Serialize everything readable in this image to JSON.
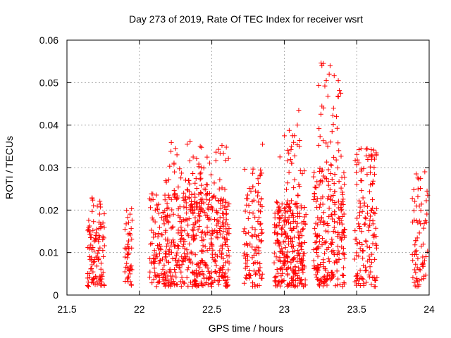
{
  "chart_data": {
    "type": "scatter",
    "title": "Day 273 of 2019, Rate Of TEC Index for receiver wsrt",
    "xlabel": "GPS time / hours",
    "ylabel": "ROTI / TECUs",
    "xlim": [
      21.5,
      24.0
    ],
    "ylim": [
      0,
      0.06
    ],
    "x_ticks": [
      "21.5",
      "22",
      "22.5",
      "23",
      "23.5",
      "24"
    ],
    "y_ticks": [
      "0",
      "0.01",
      "0.02",
      "0.03",
      "0.04",
      "0.05",
      "0.06"
    ],
    "x_tick_values": [
      21.5,
      22.0,
      22.5,
      23.0,
      23.5,
      24.0
    ],
    "y_tick_values": [
      0,
      0.01,
      0.02,
      0.03,
      0.04,
      0.05,
      0.06
    ],
    "grid": true,
    "marker": "+",
    "color": "#ff0000",
    "series": [
      {
        "name": "ROTI",
        "clusters": [
          {
            "x_range": [
              21.64,
              21.76
            ],
            "y_range": [
              0.002,
              0.023
            ],
            "count": 110,
            "seed": 11
          },
          {
            "x_range": [
              21.9,
              21.95
            ],
            "y_range": [
              0.002,
              0.021
            ],
            "count": 45,
            "seed": 12
          },
          {
            "x_range": [
              22.07,
              22.62
            ],
            "y_range": [
              0.002,
              0.024
            ],
            "count": 520,
            "seed": 13
          },
          {
            "x_range": [
              22.18,
              22.62
            ],
            "y_range": [
              0.02,
              0.036
            ],
            "count": 90,
            "seed": 14
          },
          {
            "x_range": [
              22.72,
              22.85
            ],
            "y_range": [
              0.002,
              0.03
            ],
            "count": 110,
            "seed": 15
          },
          {
            "x_range": [
              22.93,
              23.15
            ],
            "y_range": [
              0.002,
              0.022
            ],
            "count": 260,
            "seed": 16
          },
          {
            "x_range": [
              23.0,
              23.14
            ],
            "y_range": [
              0.02,
              0.044
            ],
            "count": 35,
            "seed": 17
          },
          {
            "x_range": [
              23.2,
              23.42
            ],
            "y_range": [
              0.002,
              0.03
            ],
            "count": 230,
            "seed": 18
          },
          {
            "x_range": [
              23.23,
              23.4
            ],
            "y_range": [
              0.028,
              0.055
            ],
            "count": 30,
            "seed": 19
          },
          {
            "x_range": [
              23.48,
              23.64
            ],
            "y_range": [
              0.002,
              0.035
            ],
            "count": 140,
            "seed": 20
          },
          {
            "x_range": [
              23.88,
              23.99
            ],
            "y_range": [
              0.002,
              0.029
            ],
            "count": 70,
            "seed": 21
          }
        ],
        "points": [
          [
            22.85,
            0.0355
          ],
          [
            22.42,
            0.035
          ],
          [
            22.57,
            0.0352
          ],
          [
            22.6,
            0.0348
          ],
          [
            23.27,
            0.0545
          ],
          [
            23.31,
            0.052
          ],
          [
            23.29,
            0.0505
          ],
          [
            23.28,
            0.0492
          ],
          [
            23.39,
            0.0475
          ],
          [
            23.37,
            0.0468
          ],
          [
            23.34,
            0.044
          ],
          [
            23.36,
            0.042
          ],
          [
            23.1,
            0.0435
          ],
          [
            23.09,
            0.04
          ],
          [
            23.33,
            0.0385
          ],
          [
            23.32,
            0.036
          ],
          [
            23.3,
            0.035
          ],
          [
            23.07,
            0.0375
          ],
          [
            23.05,
            0.035
          ],
          [
            22.97,
            0.0325
          ],
          [
            23.6,
            0.033
          ],
          [
            23.53,
            0.0345
          ],
          [
            23.97,
            0.029
          ],
          [
            23.99,
            0.0235
          ],
          [
            23.91,
            0.0285
          ],
          [
            22.35,
            0.0362
          ],
          [
            22.33,
            0.0355
          ],
          [
            22.25,
            0.0345
          ]
        ]
      }
    ]
  }
}
